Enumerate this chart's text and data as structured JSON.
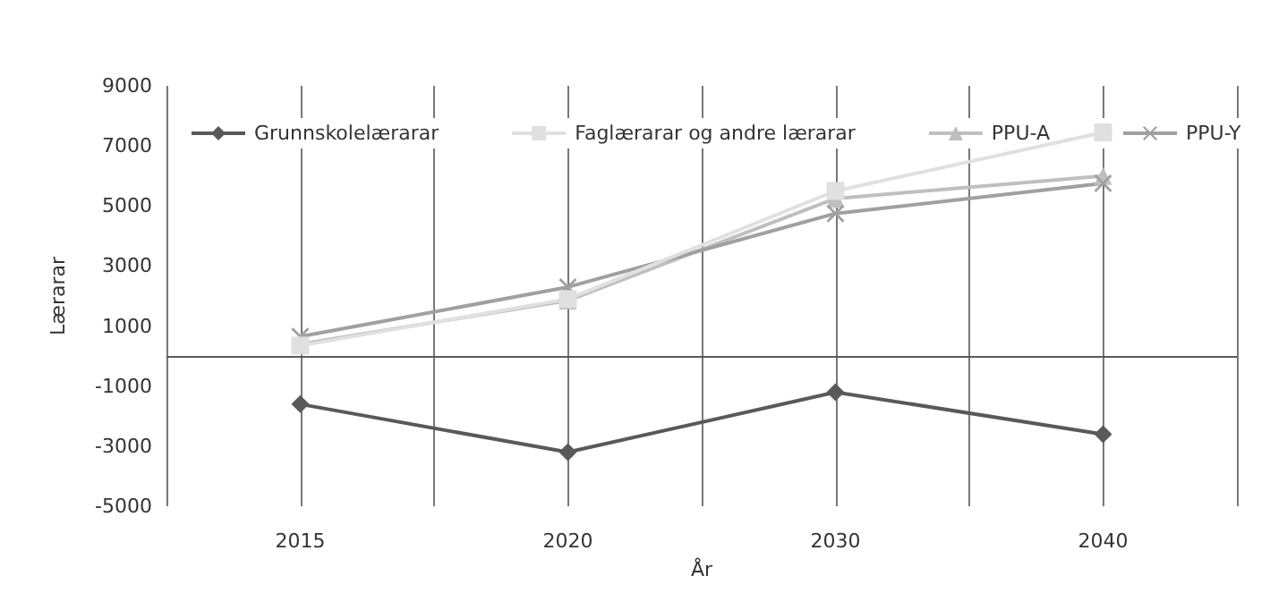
{
  "chart_data": {
    "type": "line",
    "xlabel": "År",
    "ylabel": "Lærarar",
    "categories": [
      "2015",
      "2020",
      "2030",
      "2040"
    ],
    "series": [
      {
        "name": "Grunnskolelærarar",
        "color": "#595959",
        "marker": "diamond",
        "values": [
          -1600,
          -3200,
          -1200,
          -2600
        ]
      },
      {
        "name": "Faglærarar og andre lærarar",
        "color": "#e0e0e0",
        "marker": "square",
        "values": [
          350,
          1900,
          5500,
          7450
        ]
      },
      {
        "name": "PPU-A",
        "color": "#bfbfbf",
        "marker": "triangle",
        "values": [
          400,
          1850,
          5250,
          6000
        ]
      },
      {
        "name": "PPU-Y",
        "color": "#a0a0a0",
        "marker": "cross",
        "values": [
          650,
          2300,
          4750,
          5750
        ]
      }
    ],
    "ylim": [
      -5000,
      9000
    ],
    "yticks": [
      -5000,
      -3000,
      -1000,
      1000,
      3000,
      5000,
      7000,
      9000
    ],
    "grid": "x",
    "legend": "top",
    "ref_lines": [
      {
        "axis": "y",
        "value": 0,
        "color": "#595959"
      }
    ]
  }
}
